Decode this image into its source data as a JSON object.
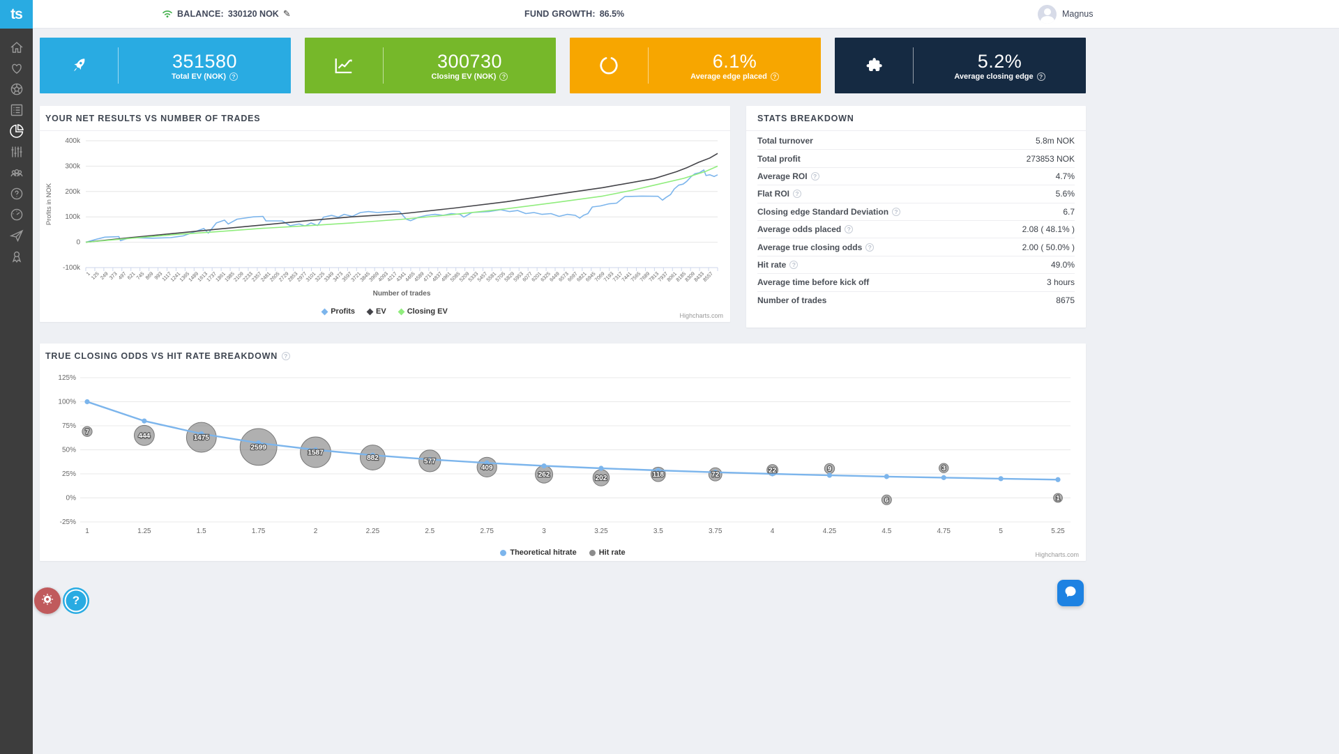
{
  "logo_text": "ts",
  "topbar": {
    "balance_label": "BALANCE:",
    "balance_value": "330120 NOK",
    "growth_label": "FUND GROWTH:",
    "growth_value": "86.5%",
    "user_name": "Magnus"
  },
  "sidebar": {
    "items": [
      "home-icon",
      "heart-icon",
      "football-icon",
      "list-icon",
      "pie-chart-icon",
      "sliders-icon",
      "users-icon",
      "help-icon",
      "gauge-icon",
      "paper-plane-icon",
      "award-icon"
    ],
    "active_index": 4
  },
  "colors": {
    "brand_blue": "#29abe2",
    "card_green": "#76b82a",
    "card_orange": "#f7a600",
    "card_navy": "#152a42",
    "series_blue": "#7cb5ec",
    "series_dark": "#434348",
    "series_green": "#90ed7d",
    "bubble_gray": "#8c8c8c"
  },
  "cards": [
    {
      "icon": "rocket-icon",
      "value": "351580",
      "label": "Total EV (NOK)",
      "color": "#29abe2"
    },
    {
      "icon": "chart-increase-icon",
      "value": "300730",
      "label": "Closing EV (NOK)",
      "color": "#76b82a"
    },
    {
      "icon": "circle-arc-icon",
      "value": "6.1%",
      "label": "Average edge placed",
      "color": "#f7a600"
    },
    {
      "icon": "puzzle-icon",
      "value": "5.2%",
      "label": "Average closing edge",
      "color": "#152a42"
    }
  ],
  "net_results_panel": {
    "title": "YOUR NET RESULTS VS NUMBER OF TRADES",
    "credit": "Highcharts.com"
  },
  "stats": {
    "title": "STATS BREAKDOWN",
    "rows": [
      {
        "label": "Total turnover",
        "info": false,
        "value": "5.8m NOK"
      },
      {
        "label": "Total profit",
        "info": false,
        "value": "273853 NOK"
      },
      {
        "label": "Average ROI",
        "info": true,
        "value": "4.7%"
      },
      {
        "label": "Flat ROI",
        "info": true,
        "value": "5.6%"
      },
      {
        "label": "Closing edge Standard Deviation",
        "info": true,
        "value": "6.7"
      },
      {
        "label": "Average odds placed",
        "info": true,
        "value": "2.08 ( 48.1% )"
      },
      {
        "label": "Average true closing odds",
        "info": true,
        "value": "2.00 ( 50.0% )"
      },
      {
        "label": "Hit rate",
        "info": true,
        "value": "49.0%"
      },
      {
        "label": "Average time before kick off",
        "info": false,
        "value": "3 hours"
      },
      {
        "label": "Number of trades",
        "info": false,
        "value": "8675"
      }
    ]
  },
  "odds_panel": {
    "title": "TRUE CLOSING ODDS VS HIT RATE BREAKDOWN",
    "credit": "Highcharts.com"
  },
  "chart_data": [
    {
      "type": "line",
      "title": "YOUR NET RESULTS VS NUMBER OF TRADES",
      "xlabel": "Number of trades",
      "ylabel": "Profits in NOK",
      "ylim": [
        -100000,
        400000
      ],
      "grid": "horizontal",
      "legend_position": "bottom",
      "yticks": [
        {
          "v": 400000,
          "label": "400k"
        },
        {
          "v": 300000,
          "label": "300k"
        },
        {
          "v": 200000,
          "label": "200k"
        },
        {
          "v": 100000,
          "label": "100k"
        },
        {
          "v": 0,
          "label": "0"
        },
        {
          "v": -100000,
          "label": "-100k"
        }
      ],
      "x_categories": [
        1,
        125,
        249,
        373,
        497,
        621,
        745,
        869,
        993,
        1117,
        1241,
        1365,
        1489,
        1613,
        1737,
        1861,
        1985,
        2109,
        2233,
        2357,
        2481,
        2605,
        2729,
        2853,
        2977,
        3101,
        3225,
        3349,
        3473,
        3597,
        3721,
        3845,
        3969,
        4093,
        4217,
        4341,
        4465,
        4589,
        4713,
        4837,
        4961,
        5085,
        5209,
        5333,
        5457,
        5581,
        5705,
        5829,
        5953,
        6077,
        6201,
        6325,
        6449,
        6573,
        6697,
        6821,
        6945,
        7069,
        7193,
        7317,
        7441,
        7565,
        7689,
        7813,
        7937,
        8061,
        8185,
        8309,
        8433,
        8557
      ],
      "series": [
        {
          "name": "Profits",
          "color": "#7cb5ec",
          "points": [
            [
              1,
              0
            ],
            [
              150,
              12000
            ],
            [
              260,
              20000
            ],
            [
              450,
              22000
            ],
            [
              470,
              6000
            ],
            [
              600,
              18000
            ],
            [
              900,
              16000
            ],
            [
              1150,
              18000
            ],
            [
              1320,
              25000
            ],
            [
              1600,
              54000
            ],
            [
              1660,
              36000
            ],
            [
              1770,
              76000
            ],
            [
              1880,
              87000
            ],
            [
              1930,
              72000
            ],
            [
              2050,
              91000
            ],
            [
              2270,
              100000
            ],
            [
              2400,
              102000
            ],
            [
              2440,
              84000
            ],
            [
              2660,
              84000
            ],
            [
              2770,
              65000
            ],
            [
              2890,
              72000
            ],
            [
              2970,
              64000
            ],
            [
              3050,
              76000
            ],
            [
              3140,
              66000
            ],
            [
              3220,
              99000
            ],
            [
              3330,
              106000
            ],
            [
              3420,
              99000
            ],
            [
              3500,
              110000
            ],
            [
              3610,
              102000
            ],
            [
              3720,
              117000
            ],
            [
              3830,
              121000
            ],
            [
              3950,
              117000
            ],
            [
              4170,
              122000
            ],
            [
              4250,
              121000
            ],
            [
              4340,
              91000
            ],
            [
              4400,
              85000
            ],
            [
              4510,
              99000
            ],
            [
              4620,
              106000
            ],
            [
              4730,
              110000
            ],
            [
              4840,
              106000
            ],
            [
              4950,
              113000
            ],
            [
              5070,
              110000
            ],
            [
              5120,
              99000
            ],
            [
              5230,
              117000
            ],
            [
              5460,
              121000
            ],
            [
              5620,
              128000
            ],
            [
              5740,
              121000
            ],
            [
              5850,
              125000
            ],
            [
              5960,
              113000
            ],
            [
              6070,
              117000
            ],
            [
              6180,
              110000
            ],
            [
              6300,
              113000
            ],
            [
              6410,
              102000
            ],
            [
              6520,
              110000
            ],
            [
              6630,
              106000
            ],
            [
              6690,
              95000
            ],
            [
              6740,
              106000
            ],
            [
              6800,
              113000
            ],
            [
              6860,
              139000
            ],
            [
              6970,
              143000
            ],
            [
              7080,
              151000
            ],
            [
              7190,
              154000
            ],
            [
              7300,
              180000
            ],
            [
              7530,
              182000
            ],
            [
              7750,
              181000
            ],
            [
              7810,
              166000
            ],
            [
              7860,
              177000
            ],
            [
              7920,
              188000
            ],
            [
              7970,
              210000
            ],
            [
              8030,
              225000
            ],
            [
              8090,
              229000
            ],
            [
              8140,
              240000
            ],
            [
              8200,
              259000
            ],
            [
              8250,
              270000
            ],
            [
              8310,
              274000
            ],
            [
              8370,
              285000
            ],
            [
              8400,
              263000
            ],
            [
              8450,
              266000
            ],
            [
              8510,
              259000
            ],
            [
              8557,
              266000
            ]
          ]
        },
        {
          "name": "EV",
          "color": "#434348",
          "points": [
            [
              1,
              0
            ],
            [
              600,
              18000
            ],
            [
              1200,
              35000
            ],
            [
              1800,
              52000
            ],
            [
              2400,
              68000
            ],
            [
              3000,
              85000
            ],
            [
              3600,
              100000
            ],
            [
              4300,
              113000
            ],
            [
              5000,
              135000
            ],
            [
              5700,
              160000
            ],
            [
              6400,
              190000
            ],
            [
              7000,
              215000
            ],
            [
              7700,
              251000
            ],
            [
              8000,
              278000
            ],
            [
              8150,
              295000
            ],
            [
              8300,
              315000
            ],
            [
              8450,
              332000
            ],
            [
              8557,
              350000
            ]
          ]
        },
        {
          "name": "Closing EV",
          "color": "#90ed7d",
          "points": [
            [
              1,
              0
            ],
            [
              600,
              15000
            ],
            [
              1200,
              30000
            ],
            [
              1800,
              42000
            ],
            [
              2400,
              55000
            ],
            [
              3000,
              65000
            ],
            [
              3600,
              76000
            ],
            [
              4300,
              91000
            ],
            [
              5000,
              110000
            ],
            [
              5700,
              132000
            ],
            [
              6400,
              158000
            ],
            [
              7000,
              182000
            ],
            [
              7400,
              205000
            ],
            [
              7700,
              225000
            ],
            [
              8100,
              252000
            ],
            [
              8400,
              280000
            ],
            [
              8557,
              300000
            ]
          ]
        }
      ]
    },
    {
      "type": "line+bubble",
      "title": "TRUE CLOSING ODDS VS HIT RATE BREAKDOWN",
      "xlabel": "",
      "ylabel": "",
      "xlim": [
        1,
        5.25
      ],
      "ylim": [
        -25,
        125
      ],
      "grid": "horizontal",
      "legend_position": "bottom",
      "xticks": [
        "1",
        "1.25",
        "1.5",
        "1.75",
        "2",
        "2.25",
        "2.5",
        "2.75",
        "3",
        "3.25",
        "3.5",
        "3.75",
        "4",
        "4.25",
        "4.5",
        "4.75",
        "5",
        "5.25"
      ],
      "yticks": [
        {
          "v": 125,
          "label": "125%"
        },
        {
          "v": 100,
          "label": "100%"
        },
        {
          "v": 75,
          "label": "75%"
        },
        {
          "v": 50,
          "label": "50%"
        },
        {
          "v": 25,
          "label": "25%"
        },
        {
          "v": 0,
          "label": "0%"
        },
        {
          "v": -25,
          "label": "-25%"
        }
      ],
      "series": [
        {
          "name": "Theoretical hitrate",
          "type": "line",
          "color": "#7cb5ec",
          "x": [
            1,
            1.25,
            1.5,
            1.75,
            2,
            2.25,
            2.5,
            2.75,
            3,
            3.25,
            3.5,
            3.75,
            4,
            4.25,
            4.5,
            4.75,
            5,
            5.25
          ],
          "y": [
            100,
            80,
            66.7,
            57.1,
            50,
            44.4,
            40,
            36.4,
            33.3,
            30.8,
            28.6,
            26.7,
            25,
            23.5,
            22.2,
            21.1,
            20,
            19
          ]
        },
        {
          "name": "Hit rate",
          "type": "bubble",
          "color": "#8c8c8c",
          "points": [
            {
              "odds": 1,
              "count": 7,
              "hit_rate_pct": 69
            },
            {
              "odds": 1.25,
              "count": 444,
              "hit_rate_pct": 65
            },
            {
              "odds": 1.5,
              "count": 1475,
              "hit_rate_pct": 63
            },
            {
              "odds": 1.75,
              "count": 2599,
              "hit_rate_pct": 53
            },
            {
              "odds": 2,
              "count": 1587,
              "hit_rate_pct": 47.5
            },
            {
              "odds": 2.25,
              "count": 882,
              "hit_rate_pct": 42
            },
            {
              "odds": 2.5,
              "count": 577,
              "hit_rate_pct": 38.5
            },
            {
              "odds": 2.75,
              "count": 409,
              "hit_rate_pct": 32
            },
            {
              "odds": 3,
              "count": 262,
              "hit_rate_pct": 24.5
            },
            {
              "odds": 3.25,
              "count": 202,
              "hit_rate_pct": 21
            },
            {
              "odds": 3.5,
              "count": 118,
              "hit_rate_pct": 24.5
            },
            {
              "odds": 3.75,
              "count": 72,
              "hit_rate_pct": 24.5
            },
            {
              "odds": 4,
              "count": 22,
              "hit_rate_pct": 29
            },
            {
              "odds": 4.25,
              "count": 9,
              "hit_rate_pct": 30.5
            },
            {
              "odds": 4.5,
              "count": 6,
              "hit_rate_pct": -2
            },
            {
              "odds": 4.75,
              "count": 3,
              "hit_rate_pct": 31
            },
            {
              "odds": 5.25,
              "count": 1,
              "hit_rate_pct": 0
            }
          ]
        }
      ]
    }
  ]
}
